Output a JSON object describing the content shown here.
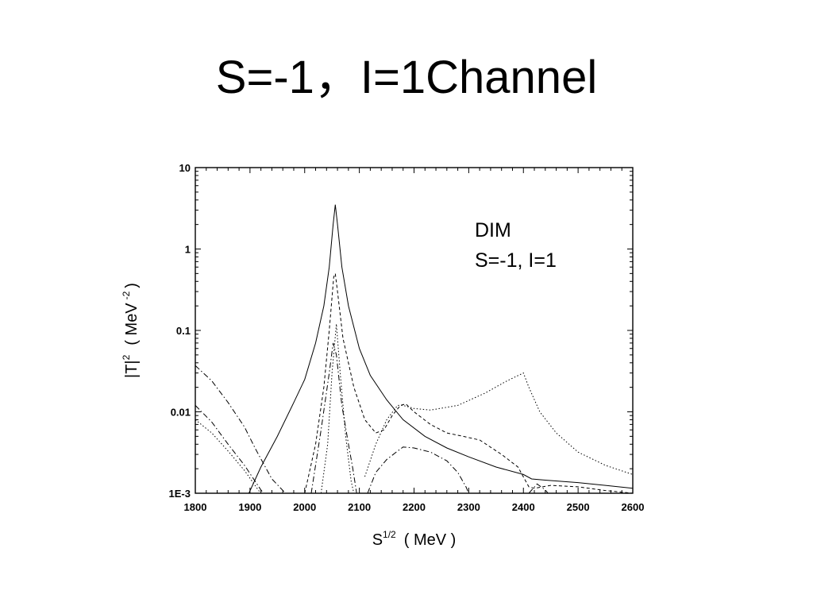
{
  "slide": {
    "title": "S=-1，I=1Channel"
  },
  "chart_data": {
    "type": "line",
    "title": "",
    "xlabel": {
      "base": "S",
      "sup": "1/2",
      "unit": "( MeV )"
    },
    "ylabel": {
      "base": "|T|",
      "sup": "2",
      "unit_open": "( MeV",
      "unit_sup": "-2",
      "unit_close": ")"
    },
    "xlim": [
      1800,
      2600
    ],
    "ylim": [
      0.001,
      10
    ],
    "yscale": "log",
    "grid": false,
    "x_ticks": [
      "1800",
      "1900",
      "2000",
      "2100",
      "2200",
      "2300",
      "2400",
      "2500",
      "2600"
    ],
    "y_ticks": [
      "1E-3",
      "0.01",
      "0.1",
      "1",
      "10"
    ],
    "annotations": [
      "DIM",
      "S=-1, I=1"
    ],
    "series": [
      {
        "style": "solid",
        "points": [
          [
            1898,
            0.001
          ],
          [
            1920,
            0.0021
          ],
          [
            1950,
            0.005
          ],
          [
            1980,
            0.013
          ],
          [
            2000,
            0.025
          ],
          [
            2020,
            0.07
          ],
          [
            2035,
            0.2
          ],
          [
            2045,
            0.6
          ],
          [
            2052,
            2.0
          ],
          [
            2056,
            3.5
          ],
          [
            2060,
            2.0
          ],
          [
            2068,
            0.6
          ],
          [
            2080,
            0.2
          ],
          [
            2100,
            0.06
          ],
          [
            2120,
            0.028
          ],
          [
            2150,
            0.014
          ],
          [
            2180,
            0.008
          ],
          [
            2220,
            0.005
          ],
          [
            2260,
            0.0036
          ],
          [
            2300,
            0.0028
          ],
          [
            2350,
            0.0021
          ],
          [
            2400,
            0.0017
          ],
          [
            2415,
            0.0015
          ],
          [
            2440,
            0.00145
          ],
          [
            2500,
            0.00135
          ],
          [
            2550,
            0.00125
          ],
          [
            2600,
            0.00115
          ]
        ]
      },
      {
        "style": "dotted",
        "points": [
          [
            2030,
            0.001
          ],
          [
            2042,
            0.004
          ],
          [
            2050,
            0.03
          ],
          [
            2058,
            0.12
          ],
          [
            2065,
            0.03
          ],
          [
            2075,
            0.005
          ],
          [
            2085,
            0.0014
          ],
          [
            2090,
            0.001
          ]
        ]
      },
      {
        "style": "dotted",
        "points": [
          [
            2110,
            0.0016
          ],
          [
            2130,
            0.004
          ],
          [
            2150,
            0.008
          ],
          [
            2170,
            0.012
          ],
          [
            2180,
            0.012
          ],
          [
            2200,
            0.011
          ],
          [
            2230,
            0.0105
          ],
          [
            2280,
            0.012
          ],
          [
            2330,
            0.017
          ],
          [
            2370,
            0.024
          ],
          [
            2400,
            0.03
          ],
          [
            2410,
            0.02
          ],
          [
            2430,
            0.01
          ],
          [
            2460,
            0.0055
          ],
          [
            2500,
            0.0032
          ],
          [
            2550,
            0.0022
          ],
          [
            2600,
            0.0017
          ]
        ]
      },
      {
        "style": "dotted",
        "points": [
          [
            1800,
            0.008
          ],
          [
            1830,
            0.0055
          ],
          [
            1860,
            0.0033
          ],
          [
            1890,
            0.0019
          ],
          [
            1915,
            0.0011
          ],
          [
            1920,
            0.001
          ]
        ]
      },
      {
        "style": "dashed",
        "points": [
          [
            2000,
            0.001
          ],
          [
            2020,
            0.004
          ],
          [
            2035,
            0.02
          ],
          [
            2045,
            0.1
          ],
          [
            2053,
            0.45
          ],
          [
            2056,
            0.5
          ],
          [
            2060,
            0.3
          ],
          [
            2070,
            0.08
          ],
          [
            2090,
            0.02
          ],
          [
            2110,
            0.008
          ],
          [
            2130,
            0.0055
          ],
          [
            2145,
            0.006
          ],
          [
            2160,
            0.009
          ],
          [
            2175,
            0.012
          ],
          [
            2185,
            0.0125
          ],
          [
            2200,
            0.01
          ],
          [
            2230,
            0.007
          ],
          [
            2260,
            0.0055
          ],
          [
            2290,
            0.005
          ],
          [
            2320,
            0.0045
          ],
          [
            2360,
            0.003
          ],
          [
            2390,
            0.0021
          ],
          [
            2410,
            0.0012
          ],
          [
            2420,
            0.00115
          ],
          [
            2450,
            0.00125
          ],
          [
            2500,
            0.0012
          ],
          [
            2550,
            0.00108
          ],
          [
            2600,
            0.001
          ]
        ]
      },
      {
        "style": "dashdot",
        "points": [
          [
            1800,
            0.037
          ],
          [
            1830,
            0.024
          ],
          [
            1860,
            0.013
          ],
          [
            1890,
            0.0065
          ],
          [
            1910,
            0.0035
          ],
          [
            1940,
            0.0015
          ],
          [
            1965,
            0.001
          ]
        ]
      },
      {
        "style": "dashdot",
        "points": [
          [
            1800,
            0.012
          ],
          [
            1830,
            0.0075
          ],
          [
            1860,
            0.004
          ],
          [
            1890,
            0.0022
          ],
          [
            1920,
            0.0011
          ],
          [
            1925,
            0.001
          ]
        ]
      },
      {
        "style": "dashdot",
        "points": [
          [
            2012,
            0.001
          ],
          [
            2030,
            0.006
          ],
          [
            2045,
            0.03
          ],
          [
            2052,
            0.07
          ],
          [
            2058,
            0.05
          ],
          [
            2068,
            0.012
          ],
          [
            2080,
            0.004
          ],
          [
            2088,
            0.002
          ],
          [
            2095,
            0.001
          ]
        ]
      },
      {
        "style": "dashdot",
        "points": [
          [
            2115,
            0.001
          ],
          [
            2130,
            0.0018
          ],
          [
            2150,
            0.0026
          ],
          [
            2170,
            0.0033
          ],
          [
            2180,
            0.0037
          ],
          [
            2200,
            0.0036
          ],
          [
            2230,
            0.0032
          ],
          [
            2260,
            0.0025
          ],
          [
            2280,
            0.0018
          ],
          [
            2295,
            0.0012
          ],
          [
            2300,
            0.001
          ]
        ]
      },
      {
        "style": "dashdot",
        "points": [
          [
            2410,
            0.001
          ],
          [
            2425,
            0.0013
          ],
          [
            2440,
            0.0011
          ],
          [
            2445,
            0.001
          ]
        ]
      }
    ]
  }
}
